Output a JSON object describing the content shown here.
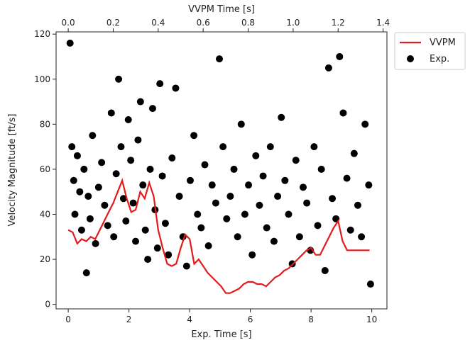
{
  "colors": {
    "model_line": "#e31a1c",
    "experiment_points": "#000000",
    "axes": "#222222",
    "legend_frame": "#cccccc"
  },
  "chart_data": {
    "type": "scatter",
    "title": "",
    "xlabel": "Exp. Time [s]",
    "ylabel": "Velocity Magnitude [ft/s]",
    "secondary_xlabel": "VVPM Time [s]",
    "xlim": [
      -0.4,
      10.5
    ],
    "ylim": [
      -2,
      121
    ],
    "secondary_xlim": [
      -0.054,
      1.417
    ],
    "xticks": [
      0,
      2,
      4,
      6,
      8,
      10
    ],
    "yticks": [
      0,
      20,
      40,
      60,
      80,
      100,
      120
    ],
    "secondary_xticks": [
      0.0,
      0.2,
      0.4,
      0.6,
      0.8,
      1.0,
      1.2,
      1.4
    ],
    "grid": false,
    "legend_position": "outside top-right",
    "series": [
      {
        "name": "VVPM",
        "kind": "line",
        "x_axis": "secondary",
        "x": [
          0.0,
          0.02,
          0.04,
          0.06,
          0.08,
          0.1,
          0.12,
          0.14,
          0.16,
          0.18,
          0.2,
          0.22,
          0.24,
          0.26,
          0.28,
          0.3,
          0.32,
          0.34,
          0.36,
          0.38,
          0.4,
          0.42,
          0.44,
          0.46,
          0.48,
          0.5,
          0.52,
          0.54,
          0.56,
          0.58,
          0.6,
          0.62,
          0.64,
          0.66,
          0.68,
          0.7,
          0.72,
          0.74,
          0.76,
          0.78,
          0.8,
          0.82,
          0.84,
          0.86,
          0.88,
          0.9,
          0.92,
          0.94,
          0.96,
          0.98,
          1.0,
          1.02,
          1.04,
          1.06,
          1.08,
          1.1,
          1.12,
          1.14,
          1.16,
          1.18,
          1.2,
          1.22,
          1.24,
          1.26,
          1.28,
          1.3,
          1.32,
          1.34
        ],
        "y": [
          33,
          32,
          27,
          29,
          28,
          30,
          29,
          33,
          37,
          41,
          45,
          50,
          55,
          47,
          41,
          42,
          50,
          47,
          54,
          48,
          33,
          25,
          18,
          17,
          18,
          25,
          31,
          29,
          18,
          20,
          17,
          14,
          12,
          10,
          8,
          5,
          5,
          6,
          7,
          9,
          10,
          10,
          9,
          9,
          8,
          10,
          12,
          13,
          15,
          16,
          18,
          20,
          22,
          24,
          25,
          22,
          22,
          26,
          30,
          34,
          37,
          28,
          24,
          24,
          24,
          24,
          24,
          24
        ]
      },
      {
        "name": "Exp.",
        "kind": "scatter",
        "x_axis": "primary",
        "x": [
          0.06,
          0.12,
          0.18,
          0.22,
          0.3,
          0.38,
          0.44,
          0.52,
          0.6,
          0.66,
          0.72,
          0.8,
          0.9,
          1.0,
          1.1,
          1.2,
          1.3,
          1.42,
          1.5,
          1.58,
          1.66,
          1.74,
          1.82,
          1.9,
          1.98,
          2.06,
          2.14,
          2.22,
          2.3,
          2.38,
          2.46,
          2.54,
          2.62,
          2.7,
          2.78,
          2.86,
          2.94,
          3.02,
          3.1,
          3.2,
          3.3,
          3.42,
          3.54,
          3.66,
          3.78,
          3.9,
          4.02,
          4.14,
          4.26,
          4.38,
          4.5,
          4.62,
          4.74,
          4.86,
          4.98,
          5.1,
          5.22,
          5.34,
          5.46,
          5.58,
          5.7,
          5.82,
          5.94,
          6.06,
          6.18,
          6.3,
          6.42,
          6.54,
          6.66,
          6.78,
          6.9,
          7.02,
          7.14,
          7.26,
          7.38,
          7.5,
          7.62,
          7.74,
          7.86,
          7.98,
          8.1,
          8.22,
          8.34,
          8.46,
          8.58,
          8.7,
          8.82,
          8.94,
          9.06,
          9.18,
          9.3,
          9.42,
          9.54,
          9.66,
          9.78,
          9.9,
          9.96
        ],
        "y": [
          116,
          70,
          55,
          40,
          66,
          50,
          33,
          60,
          14,
          48,
          38,
          75,
          27,
          52,
          63,
          44,
          35,
          85,
          30,
          58,
          100,
          70,
          47,
          37,
          82,
          64,
          45,
          28,
          73,
          90,
          53,
          33,
          20,
          60,
          87,
          42,
          25,
          98,
          57,
          36,
          22,
          65,
          96,
          48,
          30,
          17,
          55,
          75,
          40,
          34,
          62,
          26,
          53,
          45,
          109,
          70,
          38,
          48,
          60,
          30,
          80,
          40,
          53,
          22,
          66,
          44,
          57,
          34,
          70,
          28,
          48,
          83,
          55,
          40,
          18,
          64,
          30,
          52,
          45,
          24,
          70,
          35,
          60,
          15,
          105,
          47,
          38,
          110,
          85,
          56,
          33,
          67,
          44,
          30,
          80,
          53,
          9
        ]
      }
    ]
  }
}
